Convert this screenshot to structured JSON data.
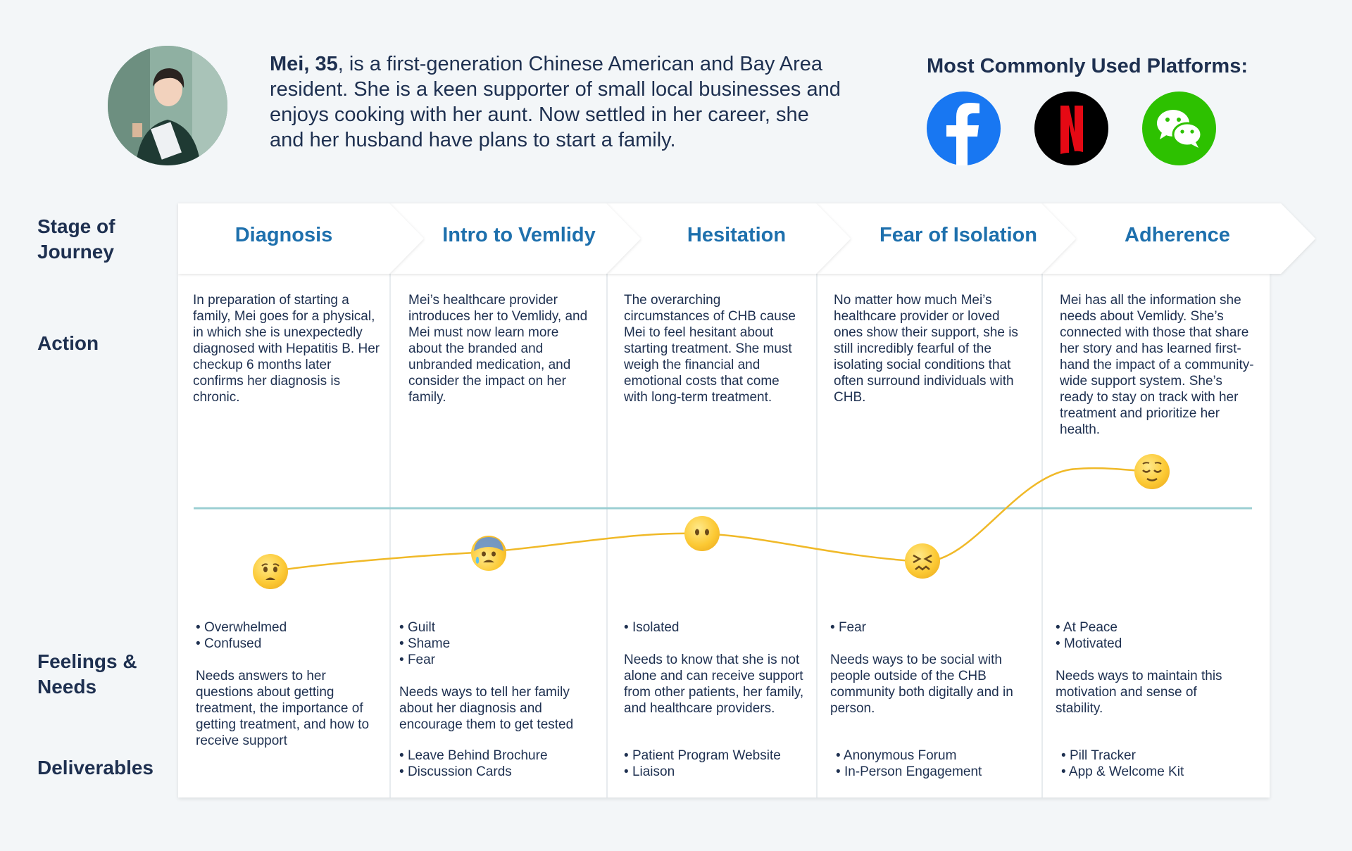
{
  "persona": {
    "name_age": "Mei, 35",
    "bio_rest": ", is a first-generation Chinese American and Bay Area resident. She is a keen supporter of small local businesses and enjoys cooking with her aunt. Now settled in her career, she and her husband have plans to start a family."
  },
  "platforms": {
    "title": "Most Commonly Used Platforms:",
    "items": [
      {
        "name": "facebook-icon",
        "letter": "f",
        "color": "#1877f2"
      },
      {
        "name": "netflix-icon",
        "letter": "N",
        "color": "#e50914"
      },
      {
        "name": "wechat-icon",
        "letter": "",
        "color": "#2dc100"
      }
    ]
  },
  "row_labels": {
    "stage": "Stage of Journey",
    "action": "Action",
    "feelings": "Feelings & Needs",
    "deliverables": "Deliverables"
  },
  "colors": {
    "stage_text": "#1e70ad",
    "baseline": "#9ccfd3",
    "curve": "#f0b928"
  },
  "stages": [
    {
      "title": "Diagnosis",
      "action": "In preparation of starting a family, Mei goes for a physical, in which she is unexpectedly diagnosed with Hepatitis B.  Her checkup 6 months later confirms her diagnosis is chronic.",
      "emoji": "worried-face",
      "feelings": [
        "Overwhelmed",
        "Confused"
      ],
      "needs": "Needs answers to her questions about getting treatment, the importance of getting treatment, and how to receive support",
      "deliverables": []
    },
    {
      "title": "Intro to Vemlidy",
      "action": "Mei’s healthcare provider introduces her to Vemlidy, and Mei must now learn more about the branded and unbranded medication, and consider the impact on her family.",
      "emoji": "anxious-face-with-sweat",
      "feelings": [
        "Guilt",
        "Shame",
        "Fear"
      ],
      "needs": "Needs ways to tell her family about her diagnosis and encourage them to get tested",
      "deliverables": [
        "Leave Behind Brochure",
        "Discussion Cards"
      ]
    },
    {
      "title": "Hesitation",
      "action": "The overarching circumstances of CHB cause Mei to feel hesitant about starting treatment. She must weigh the financial and emotional costs that come with long-term treatment.",
      "emoji": "face-without-mouth",
      "feelings": [
        "Isolated"
      ],
      "needs": "Needs to know that she is not alone and can receive support from other patients, her family, and healthcare providers.",
      "deliverables": [
        "Patient Program Website",
        "Liaison"
      ]
    },
    {
      "title": "Fear of Isolation",
      "action": "No matter how much Mei’s healthcare provider or loved ones show their support, she is still incredibly fearful of the isolating social conditions that often surround individuals with CHB.",
      "emoji": "confounded-face",
      "feelings": [
        "Fear"
      ],
      "needs": "Needs ways to be social with people outside of the CHB community both digitally and in person.",
      "deliverables": [
        "Anonymous Forum",
        "In-Person Engagement"
      ]
    },
    {
      "title": "Adherence",
      "action": "Mei has all the information she needs about Vemlidy. She’s connected with those that share her story and has learned first-hand the impact of a community-wide support system. She’s ready to stay on track with her treatment and prioritize her health.",
      "emoji": "relieved-face",
      "feelings": [
        "At Peace",
        "Motivated"
      ],
      "needs": "Needs ways to maintain this motivation and sense of stability.",
      "deliverables": [
        "Pill Tracker",
        "App & Welcome Kit"
      ]
    }
  ]
}
